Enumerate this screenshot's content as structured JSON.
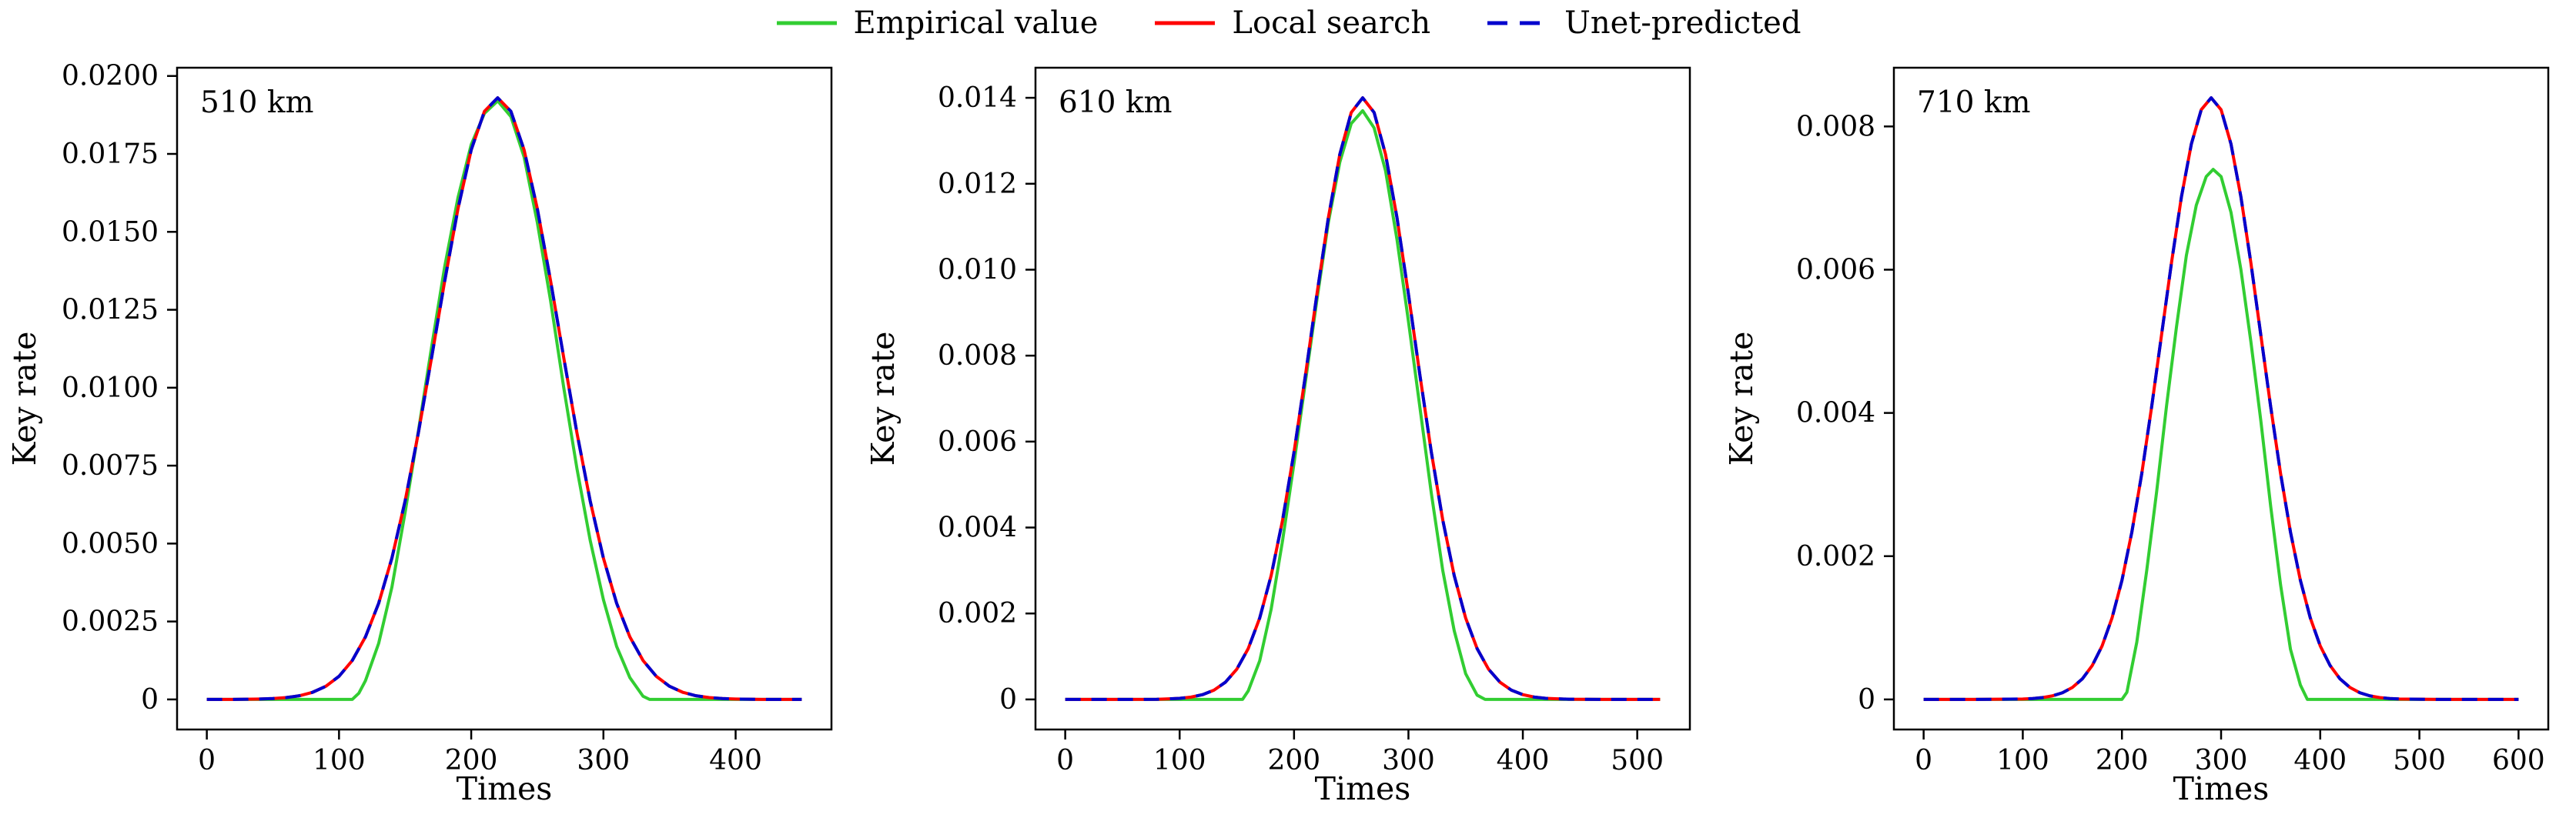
{
  "figure": {
    "background": "#ffffff",
    "axis_color": "#000000"
  },
  "legend": {
    "items": [
      {
        "label": "Empirical value",
        "color": "#32CD32",
        "dash": "solid"
      },
      {
        "label": "Local search",
        "color": "#FF0000",
        "dash": "solid"
      },
      {
        "label": "Unet-predicted",
        "color": "#0000CD",
        "dash": "dashed"
      }
    ]
  },
  "chart_data": [
    {
      "type": "line",
      "annotation": "510 km",
      "xlabel": "Times",
      "ylabel": "Key rate",
      "xlim": [
        -22.5,
        472.5
      ],
      "ylim": [
        -0.000965,
        0.020265
      ],
      "xticks": [
        0,
        100,
        200,
        300,
        400
      ],
      "xtick_labels": [
        "0",
        "100",
        "200",
        "300",
        "400"
      ],
      "yticks": [
        0,
        0.0025,
        0.005,
        0.0075,
        0.01,
        0.0125,
        0.015,
        0.0175,
        0.02
      ],
      "ytick_labels": [
        "0",
        "0.0025",
        "0.0050",
        "0.0075",
        "0.0100",
        "0.0125",
        "0.0150",
        "0.0175",
        "0.0200"
      ],
      "grid": false,
      "series": [
        {
          "name": "Empirical value",
          "color": "#32CD32",
          "style": "solid",
          "points": [
            [
              0,
              0
            ],
            [
              60,
              0
            ],
            [
              100,
              0
            ],
            [
              110,
              0
            ],
            [
              115,
              0.0002
            ],
            [
              120,
              0.0006
            ],
            [
              130,
              0.0018
            ],
            [
              140,
              0.0036
            ],
            [
              150,
              0.006
            ],
            [
              160,
              0.0086
            ],
            [
              170,
              0.0113
            ],
            [
              180,
              0.0139
            ],
            [
              190,
              0.0161
            ],
            [
              200,
              0.0178
            ],
            [
              210,
              0.0188
            ],
            [
              220,
              0.0192
            ],
            [
              230,
              0.0187
            ],
            [
              240,
              0.0174
            ],
            [
              250,
              0.0153
            ],
            [
              260,
              0.0128
            ],
            [
              270,
              0.01
            ],
            [
              280,
              0.0074
            ],
            [
              290,
              0.0051
            ],
            [
              300,
              0.0032
            ],
            [
              310,
              0.0017
            ],
            [
              320,
              0.0007
            ],
            [
              330,
              0.0001
            ],
            [
              335,
              0
            ],
            [
              360,
              0
            ],
            [
              400,
              0
            ],
            [
              450,
              0
            ]
          ]
        },
        {
          "name": "Local search",
          "color": "#FF0000",
          "style": "solid",
          "points": [
            [
              0,
              0
            ],
            [
              20,
              2e-06
            ],
            [
              30,
              6e-06
            ],
            [
              40,
              1.3e-05
            ],
            [
              50,
              2.8e-05
            ],
            [
              60,
              5.9e-05
            ],
            [
              70,
              0.000118
            ],
            [
              80,
              0.000229
            ],
            [
              90,
              0.000421
            ],
            [
              100,
              0.000741
            ],
            [
              110,
              0.001248
            ],
            [
              120,
              0.002007
            ],
            [
              130,
              0.003085
            ],
            [
              140,
              0.004533
            ],
            [
              150,
              0.006366
            ],
            [
              160,
              0.008544
            ],
            [
              170,
              0.01096
            ],
            [
              180,
              0.013436
            ],
            [
              190,
              0.015743
            ],
            [
              200,
              0.017629
            ],
            [
              210,
              0.018868
            ],
            [
              220,
              0.0193
            ],
            [
              230,
              0.018868
            ],
            [
              240,
              0.017629
            ],
            [
              250,
              0.015743
            ],
            [
              260,
              0.013436
            ],
            [
              270,
              0.01096
            ],
            [
              280,
              0.008544
            ],
            [
              290,
              0.006366
            ],
            [
              300,
              0.004533
            ],
            [
              310,
              0.003085
            ],
            [
              320,
              0.002007
            ],
            [
              330,
              0.001248
            ],
            [
              340,
              0.000741
            ],
            [
              350,
              0.000421
            ],
            [
              360,
              0.000229
            ],
            [
              370,
              0.000118
            ],
            [
              380,
              5.9e-05
            ],
            [
              390,
              2.8e-05
            ],
            [
              400,
              1.3e-05
            ],
            [
              410,
              6e-06
            ],
            [
              420,
              2e-06
            ],
            [
              435,
              1e-06
            ],
            [
              450,
              0
            ]
          ]
        },
        {
          "name": "Unet-predicted",
          "color": "#0000CD",
          "style": "dashed",
          "points_ref": 1
        }
      ]
    },
    {
      "type": "line",
      "annotation": "610 km",
      "xlabel": "Times",
      "ylabel": "Key rate",
      "xlim": [
        -26,
        546
      ],
      "ylim": [
        -0.0007,
        0.0147
      ],
      "xticks": [
        0,
        100,
        200,
        300,
        400,
        500
      ],
      "xtick_labels": [
        "0",
        "100",
        "200",
        "300",
        "400",
        "500"
      ],
      "yticks": [
        0,
        0.002,
        0.004,
        0.006,
        0.008,
        0.01,
        0.012,
        0.014
      ],
      "ytick_labels": [
        "0",
        "0.002",
        "0.004",
        "0.006",
        "0.008",
        "0.010",
        "0.012",
        "0.014"
      ],
      "grid": false,
      "series": [
        {
          "name": "Empirical value",
          "color": "#32CD32",
          "style": "solid",
          "points": [
            [
              0,
              0
            ],
            [
              80,
              0
            ],
            [
              140,
              0
            ],
            [
              155,
              0
            ],
            [
              160,
              0.0002
            ],
            [
              170,
              0.0009
            ],
            [
              180,
              0.0021
            ],
            [
              190,
              0.0037
            ],
            [
              200,
              0.0055
            ],
            [
              210,
              0.0074
            ],
            [
              220,
              0.0093
            ],
            [
              230,
              0.0111
            ],
            [
              240,
              0.0125
            ],
            [
              250,
              0.0134
            ],
            [
              260,
              0.0137
            ],
            [
              270,
              0.0133
            ],
            [
              280,
              0.0123
            ],
            [
              290,
              0.0107
            ],
            [
              300,
              0.0088
            ],
            [
              310,
              0.0068
            ],
            [
              320,
              0.0048
            ],
            [
              330,
              0.003
            ],
            [
              340,
              0.0016
            ],
            [
              350,
              0.0006
            ],
            [
              360,
              0.0001
            ],
            [
              367,
              0
            ],
            [
              400,
              0
            ],
            [
              460,
              0
            ],
            [
              520,
              0
            ]
          ]
        },
        {
          "name": "Local search",
          "color": "#FF0000",
          "style": "solid",
          "points": [
            [
              0,
              0
            ],
            [
              40,
              0
            ],
            [
              80,
              2e-06
            ],
            [
              100,
              2.5e-05
            ],
            [
              110,
              5.4e-05
            ],
            [
              120,
              0.000111
            ],
            [
              130,
              0.000216
            ],
            [
              140,
              0.0004
            ],
            [
              150,
              0.000705
            ],
            [
              160,
              0.001185
            ],
            [
              170,
              0.001895
            ],
            [
              180,
              0.002883
            ],
            [
              190,
              0.004175
            ],
            [
              200,
              0.005756
            ],
            [
              210,
              0.007551
            ],
            [
              220,
              0.009431
            ],
            [
              230,
              0.01121
            ],
            [
              240,
              0.012683
            ],
            [
              250,
              0.013658
            ],
            [
              260,
              0.014
            ],
            [
              270,
              0.013658
            ],
            [
              280,
              0.012683
            ],
            [
              290,
              0.01121
            ],
            [
              300,
              0.009431
            ],
            [
              310,
              0.007551
            ],
            [
              320,
              0.005756
            ],
            [
              330,
              0.004175
            ],
            [
              340,
              0.002883
            ],
            [
              350,
              0.001895
            ],
            [
              360,
              0.001185
            ],
            [
              370,
              0.000705
            ],
            [
              380,
              0.0004
            ],
            [
              390,
              0.000216
            ],
            [
              400,
              0.000111
            ],
            [
              410,
              5.4e-05
            ],
            [
              420,
              2.5e-05
            ],
            [
              440,
              5e-06
            ],
            [
              470,
              1e-06
            ],
            [
              500,
              0
            ],
            [
              520,
              0
            ]
          ]
        },
        {
          "name": "Unet-predicted",
          "color": "#0000CD",
          "style": "dashed",
          "points_ref": 1
        }
      ]
    },
    {
      "type": "line",
      "annotation": "710 km",
      "xlabel": "Times",
      "ylabel": "Key rate",
      "xlim": [
        -30,
        630
      ],
      "ylim": [
        -0.00042,
        0.00882
      ],
      "xticks": [
        0,
        100,
        200,
        300,
        400,
        500,
        600
      ],
      "xtick_labels": [
        "0",
        "100",
        "200",
        "300",
        "400",
        "500",
        "600"
      ],
      "yticks": [
        0,
        0.002,
        0.004,
        0.006,
        0.008
      ],
      "ytick_labels": [
        "0",
        "0.002",
        "0.004",
        "0.006",
        "0.008"
      ],
      "grid": false,
      "series": [
        {
          "name": "Empirical value",
          "color": "#32CD32",
          "style": "solid",
          "points": [
            [
              0,
              0
            ],
            [
              100,
              0
            ],
            [
              190,
              0
            ],
            [
              200,
              0
            ],
            [
              205,
              0.0001
            ],
            [
              215,
              0.0008
            ],
            [
              225,
              0.0018
            ],
            [
              235,
              0.0029
            ],
            [
              245,
              0.0041
            ],
            [
              255,
              0.0052
            ],
            [
              265,
              0.0062
            ],
            [
              275,
              0.0069
            ],
            [
              285,
              0.0073
            ],
            [
              292,
              0.0074
            ],
            [
              300,
              0.0073
            ],
            [
              310,
              0.0068
            ],
            [
              320,
              0.006
            ],
            [
              330,
              0.005
            ],
            [
              340,
              0.0039
            ],
            [
              350,
              0.0027
            ],
            [
              360,
              0.0016
            ],
            [
              370,
              0.0007
            ],
            [
              380,
              0.0002
            ],
            [
              387,
              0
            ],
            [
              420,
              0
            ],
            [
              500,
              0
            ],
            [
              600,
              0
            ]
          ]
        },
        {
          "name": "Local search",
          "color": "#FF0000",
          "style": "solid",
          "points": [
            [
              0,
              0
            ],
            [
              50,
              0
            ],
            [
              100,
              6e-06
            ],
            [
              110,
              1.3e-05
            ],
            [
              120,
              2.6e-05
            ],
            [
              130,
              5e-05
            ],
            [
              140,
              9.3e-05
            ],
            [
              150,
              0.000167
            ],
            [
              160,
              0.000286
            ],
            [
              170,
              0.000472
            ],
            [
              180,
              0.000747
            ],
            [
              190,
              0.001137
            ],
            [
              200,
              0.001662
            ],
            [
              210,
              0.002336
            ],
            [
              220,
              0.003153
            ],
            [
              230,
              0.004089
            ],
            [
              240,
              0.005095
            ],
            [
              250,
              0.0061
            ],
            [
              260,
              0.007016
            ],
            [
              270,
              0.007754
            ],
            [
              280,
              0.008234
            ],
            [
              290,
              0.0084
            ],
            [
              300,
              0.008234
            ],
            [
              310,
              0.007754
            ],
            [
              320,
              0.007016
            ],
            [
              330,
              0.0061
            ],
            [
              340,
              0.005095
            ],
            [
              350,
              0.004089
            ],
            [
              360,
              0.003153
            ],
            [
              370,
              0.002336
            ],
            [
              380,
              0.001662
            ],
            [
              390,
              0.001137
            ],
            [
              400,
              0.000747
            ],
            [
              410,
              0.000472
            ],
            [
              420,
              0.000286
            ],
            [
              430,
              0.000167
            ],
            [
              440,
              9.3e-05
            ],
            [
              450,
              5e-05
            ],
            [
              460,
              2.6e-05
            ],
            [
              470,
              1.3e-05
            ],
            [
              480,
              6e-06
            ],
            [
              520,
              0
            ],
            [
              560,
              0
            ],
            [
              600,
              0
            ]
          ]
        },
        {
          "name": "Unet-predicted",
          "color": "#0000CD",
          "style": "dashed",
          "points_ref": 1
        }
      ]
    }
  ]
}
